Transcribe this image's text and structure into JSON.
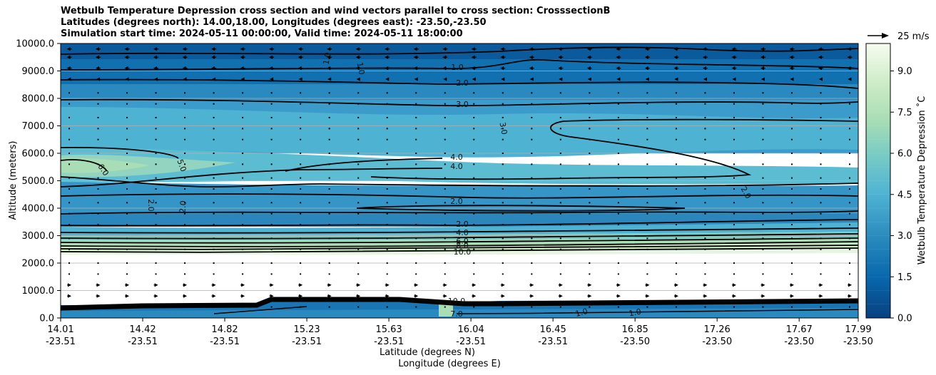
{
  "chart_data": {
    "type": "heatmap",
    "title": [
      "Wetbulb Temperature Depression cross section and wind vectors parallel to cross section: CrosssectionB",
      "Latitudes (degrees north): 14.00,18.00, Longitudes (degrees east): -23.50,-23.50",
      "Simulation start time: 2024-05-11 00:00:00, Valid time: 2024-05-11 18:00:00"
    ],
    "xlabel": "Latitude (degrees N)",
    "xlabel2": "Longitude (degrees E)",
    "ylabel": "Altitude (meters)",
    "colorbar_label": "Wetbulb Temperature Depression ˚C",
    "colorbar_ticks": [
      "0.0",
      "1.5",
      "3.0",
      "4.5",
      "6.0",
      "7.5",
      "9.0"
    ],
    "colorbar_range": [
      0,
      10
    ],
    "quiver_key": "25 m/s",
    "ylim": [
      0,
      10000
    ],
    "y_ticks": [
      "0.0",
      "1000.0",
      "2000.0",
      "3000.0",
      "4000.0",
      "5000.0",
      "6000.0",
      "7000.0",
      "8000.0",
      "9000.0",
      "10000.0"
    ],
    "x_ticks": [
      {
        "lat": "14.01",
        "lon": "-23.51"
      },
      {
        "lat": "14.42",
        "lon": "-23.51"
      },
      {
        "lat": "14.82",
        "lon": "-23.51"
      },
      {
        "lat": "15.23",
        "lon": "-23.51"
      },
      {
        "lat": "15.63",
        "lon": "-23.51"
      },
      {
        "lat": "16.04",
        "lon": "-23.51"
      },
      {
        "lat": "16.45",
        "lon": "-23.51"
      },
      {
        "lat": "16.85",
        "lon": "-23.50"
      },
      {
        "lat": "17.26",
        "lon": "-23.50"
      },
      {
        "lat": "17.67",
        "lon": "-23.50"
      },
      {
        "lat": "17.99",
        "lon": "-23.50"
      }
    ],
    "grid": true,
    "contour_labels": [
      "1.0",
      "2.0",
      "3.0",
      "4.0",
      "5.0",
      "6.0",
      "10.0"
    ],
    "layers_depression": [
      {
        "altitude_range": [
          9500,
          10000
        ],
        "value": 0.6
      },
      {
        "altitude_range": [
          8500,
          9500
        ],
        "value": 1.5
      },
      {
        "altitude_range": [
          7500,
          8500
        ],
        "value": 2.6
      },
      {
        "altitude_range": [
          6000,
          7500
        ],
        "value": 3.6
      },
      {
        "altitude_range": [
          5000,
          6000
        ],
        "value": 4.5,
        "max_near_14.0": 6.5
      },
      {
        "altitude_range": [
          3500,
          5000
        ],
        "value": 2.5
      },
      {
        "altitude_range": [
          2300,
          3500
        ],
        "value": "2.0 to 10.0"
      },
      {
        "altitude_range": [
          700,
          2300
        ],
        "value": null
      },
      {
        "altitude_range": [
          0,
          700
        ],
        "value": 0.8
      }
    ],
    "colors": {
      "dark": "#08529a",
      "mid": "#2b8cbe",
      "light": "#4eb3d3",
      "green": "#a8ddb5",
      "pale": "#f7fcf0"
    }
  }
}
